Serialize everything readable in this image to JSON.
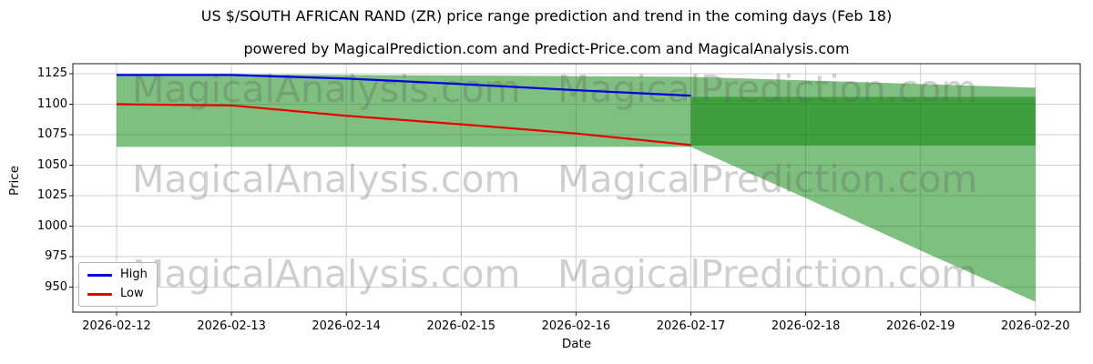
{
  "header": {
    "title": "US $/SOUTH AFRICAN RAND (ZR) price range prediction and trend in the coming days (Feb 18)",
    "subtitle": "powered by MagicalPrediction.com and Predict-Price.com and MagicalAnalysis.com"
  },
  "watermark": {
    "left": "MagicalAnalysis.com",
    "right": "MagicalPrediction.com"
  },
  "legend": {
    "items": [
      {
        "label": "High",
        "color": "#0000e0"
      },
      {
        "label": "Low",
        "color": "#e60000"
      }
    ]
  },
  "chart_data": {
    "type": "line",
    "title": "US $/SOUTH AFRICAN RAND (ZR) price range prediction and trend in the coming days (Feb 18)",
    "xlabel": "Date",
    "ylabel": "Price",
    "categories": [
      "2026-02-12",
      "2026-02-13",
      "2026-02-14",
      "2026-02-15",
      "2026-02-16",
      "2026-02-17",
      "2026-02-18",
      "2026-02-19",
      "2026-02-20"
    ],
    "yticks": [
      950,
      975,
      1000,
      1025,
      1050,
      1075,
      1100,
      1125
    ],
    "ylim": [
      929,
      1133
    ],
    "grid": true,
    "grid_color": "#cfcfcf",
    "legend_position": "lower left",
    "series": [
      {
        "name": "High",
        "color": "#0000e0",
        "values": [
          1124,
          1124,
          1121,
          1116.5,
          1111.5,
          1107,
          null,
          null,
          null
        ]
      },
      {
        "name": "Low",
        "color": "#e60000",
        "values": [
          1100,
          1099,
          1090.5,
          1083.5,
          1076,
          1066.5,
          null,
          null,
          null
        ]
      }
    ],
    "bands": [
      {
        "name": "outer-range",
        "color": "rgba(0,128,0,0.5)",
        "top": [
          1124.5,
          1124.5,
          1124,
          1123.5,
          1123,
          1122.5,
          1119.5,
          1116.5,
          1113.5
        ],
        "bottom": [
          1065,
          1065,
          1065,
          1065,
          1065,
          1065,
          1023,
          980,
          938
        ]
      },
      {
        "name": "inner-range",
        "color": "rgba(0,128,0,0.5)",
        "top": [
          null,
          null,
          null,
          null,
          null,
          1106,
          1106,
          1106,
          1106
        ],
        "bottom": [
          null,
          null,
          null,
          null,
          null,
          1066,
          1066,
          1066,
          1066
        ]
      }
    ]
  }
}
